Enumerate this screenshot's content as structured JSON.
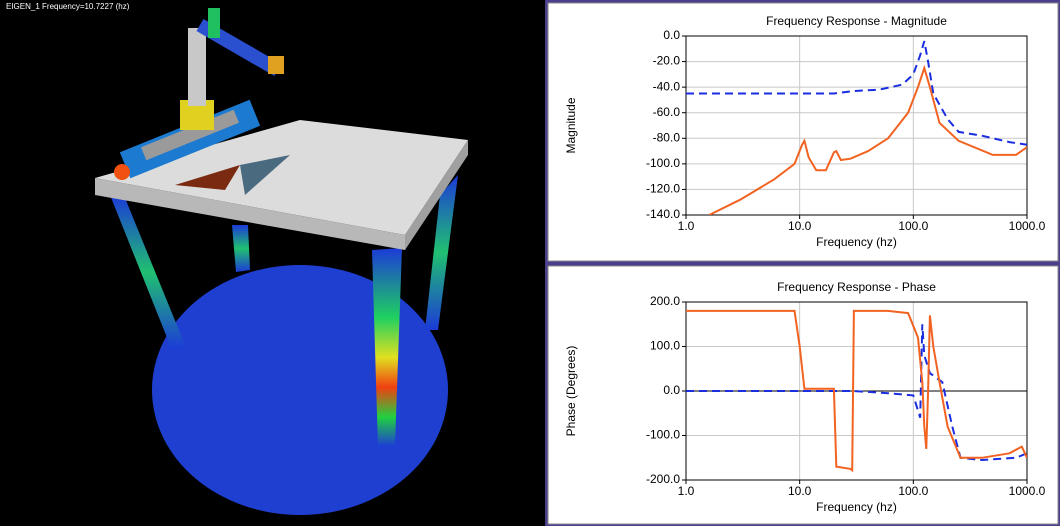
{
  "viewport": {
    "caption": "EIGEN_1 Frequency=10.7227 (hz)"
  },
  "chart_data": [
    {
      "type": "line",
      "title": "Frequency Response - Magnitude",
      "x_label": "Frequency (hz)",
      "y_label": "Magnitude",
      "xscale": "log",
      "grid": true,
      "xlim": [
        1,
        1000
      ],
      "xticks": [
        {
          "value": 1,
          "label": "1.0"
        },
        {
          "value": 10,
          "label": "10.0"
        },
        {
          "value": 100,
          "label": "100.0"
        },
        {
          "value": 1000,
          "label": "1000.0"
        }
      ],
      "ylim": [
        -140,
        0
      ],
      "yticks": [
        {
          "value": 0,
          "label": "0.0"
        },
        {
          "value": -20,
          "label": "-20.0"
        },
        {
          "value": -40,
          "label": "-40.0"
        },
        {
          "value": -60,
          "label": "-60.0"
        },
        {
          "value": -80,
          "label": "-80.0"
        },
        {
          "value": -100,
          "label": "-100.0"
        },
        {
          "value": -120,
          "label": "-120.0"
        },
        {
          "value": -140,
          "label": "-140.0"
        }
      ],
      "series": [
        {
          "color": "#1a2ee0",
          "dash": true,
          "x": [
            1,
            10,
            20,
            30,
            50,
            80,
            100,
            115,
            125,
            135,
            150,
            200,
            250,
            400,
            700,
            1000
          ],
          "values": [
            -45,
            -45,
            -45,
            -43,
            -42,
            -38,
            -30,
            -15,
            -4,
            -20,
            -45,
            -65,
            -75,
            -78,
            -83,
            -85
          ]
        },
        {
          "color": "#f26322",
          "dash": false,
          "x": [
            1.6,
            3,
            6,
            9,
            10.5,
            11,
            12,
            14,
            17,
            20,
            21,
            23,
            28,
            40,
            60,
            90,
            110,
            125,
            140,
            170,
            250,
            500,
            800,
            1000
          ],
          "values": [
            -140,
            -128,
            -112,
            -100,
            -85,
            -82,
            -95,
            -105,
            -105,
            -91,
            -90,
            -97,
            -96,
            -90,
            -80,
            -60,
            -40,
            -25,
            -40,
            -68,
            -82,
            -93,
            -93,
            -87
          ]
        }
      ]
    },
    {
      "type": "line",
      "title": "Frequency Response - Phase",
      "x_label": "Frequency (hz)",
      "y_label": "Phase (Degrees)",
      "xscale": "log",
      "grid": true,
      "xlim": [
        1,
        1000
      ],
      "xticks": [
        {
          "value": 1,
          "label": "1.0"
        },
        {
          "value": 10,
          "label": "10.0"
        },
        {
          "value": 100,
          "label": "100.0"
        },
        {
          "value": 1000,
          "label": "1000.0"
        }
      ],
      "ylim": [
        -200,
        200
      ],
      "yticks": [
        {
          "value": 200,
          "label": "200.0"
        },
        {
          "value": 100,
          "label": "100.0"
        },
        {
          "value": 0,
          "label": "0.0"
        },
        {
          "value": -100,
          "label": "-100.0"
        },
        {
          "value": -200,
          "label": "-200.0"
        }
      ],
      "series": [
        {
          "color": "#1a2ee0",
          "dash": true,
          "x": [
            1,
            10,
            30,
            60,
            100,
            115,
            120,
            125,
            140,
            180,
            220,
            260,
            400,
            800,
            1000
          ],
          "values": [
            0,
            0,
            0,
            -5,
            -10,
            -60,
            150,
            80,
            40,
            20,
            -80,
            -150,
            -155,
            -150,
            -140
          ]
        },
        {
          "color": "#f26322",
          "dash": false,
          "x": [
            1,
            9,
            10,
            11,
            20,
            21,
            28,
            29,
            30,
            60,
            90,
            110,
            120,
            125,
            130,
            135,
            140,
            150,
            170,
            200,
            260,
            400,
            700,
            900,
            1000
          ],
          "values": [
            180,
            180,
            100,
            5,
            5,
            -170,
            -175,
            -178,
            180,
            180,
            175,
            120,
            20,
            -80,
            -130,
            0,
            170,
            100,
            20,
            -80,
            -150,
            -150,
            -140,
            -125,
            -150
          ]
        }
      ]
    }
  ]
}
